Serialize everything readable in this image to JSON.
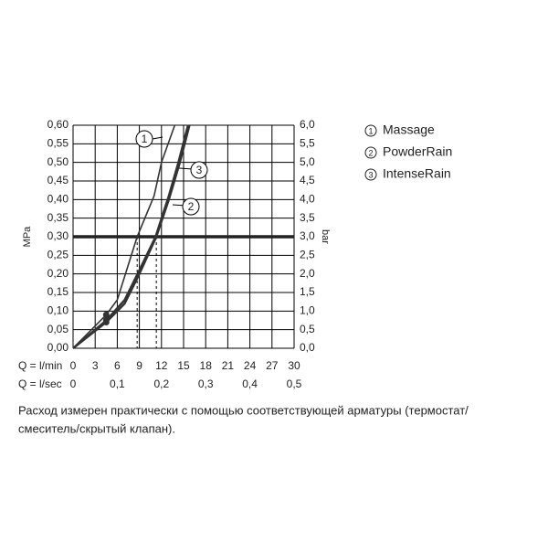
{
  "chart_data": {
    "type": "line",
    "y_label": "MPa",
    "y2_label": "bar",
    "x_label": "Q = l/min",
    "x2_label": "Q = l/sec",
    "xlim": [
      0,
      30
    ],
    "xticks": [
      0,
      3,
      6,
      9,
      12,
      15,
      18,
      21,
      24,
      27,
      30
    ],
    "x2lim": [
      0,
      0.5
    ],
    "x2ticks": [
      0,
      {
        "value": 0.1,
        "label": "0,1"
      },
      {
        "value": 0.2,
        "label": "0,2"
      },
      {
        "value": 0.3,
        "label": "0,3"
      },
      {
        "value": 0.4,
        "label": "0,4"
      },
      {
        "value": 0.5,
        "label": "0,5"
      }
    ],
    "ylim": [
      0,
      0.6
    ],
    "yticks": [
      {
        "value": 0,
        "label": "0,00"
      },
      {
        "value": 0.05,
        "label": "0,05"
      },
      {
        "value": 0.1,
        "label": "0,10"
      },
      {
        "value": 0.15,
        "label": "0,15"
      },
      {
        "value": 0.2,
        "label": "0,20"
      },
      {
        "value": 0.25,
        "label": "0,25"
      },
      {
        "value": 0.3,
        "label": "0,30"
      },
      {
        "value": 0.35,
        "label": "0,35"
      },
      {
        "value": 0.4,
        "label": "0,40"
      },
      {
        "value": 0.45,
        "label": "0,45"
      },
      {
        "value": 0.5,
        "label": "0,50"
      },
      {
        "value": 0.55,
        "label": "0,55"
      },
      {
        "value": 0.6,
        "label": "0,60"
      }
    ],
    "y2lim": [
      0,
      6
    ],
    "y2ticks": [
      {
        "value": 0,
        "label": "0,0"
      },
      {
        "value": 0.5,
        "label": "0,5"
      },
      {
        "value": 1,
        "label": "1,0"
      },
      {
        "value": 1.5,
        "label": "1,5"
      },
      {
        "value": 2,
        "label": "2,0"
      },
      {
        "value": 2.5,
        "label": "2,5"
      },
      {
        "value": 3,
        "label": "3,0"
      },
      {
        "value": 3.5,
        "label": "3,5"
      },
      {
        "value": 4,
        "label": "4,0"
      },
      {
        "value": 4.5,
        "label": "4,5"
      },
      {
        "value": 5,
        "label": "5,0"
      },
      {
        "value": 5.5,
        "label": "5,5"
      },
      {
        "value": 6,
        "label": "6,0"
      }
    ],
    "grid": true,
    "hline": 0.3,
    "reference_x": [
      8.7,
      11.3
    ],
    "series": [
      {
        "name": "Massage",
        "callout": "1",
        "color": "#333333",
        "x": [
          0,
          4.5,
          6,
          8.7,
          11,
          12,
          13.8
        ],
        "values": [
          0,
          0.09,
          0.13,
          0.3,
          0.41,
          0.5,
          0.6
        ]
      },
      {
        "name": "PowderRain",
        "callout": "2",
        "color": "#333333",
        "x": [
          0,
          4.5,
          7,
          9,
          11.3,
          13,
          14.5,
          15.8
        ],
        "values": [
          0,
          0.07,
          0.12,
          0.2,
          0.3,
          0.4,
          0.5,
          0.6
        ]
      },
      {
        "name": "IntenseRain",
        "callout": "3",
        "color": "#333333",
        "x": [
          0,
          4.5,
          7,
          9,
          11.2,
          13,
          14.3,
          15.6
        ],
        "values": [
          0,
          0.075,
          0.13,
          0.21,
          0.3,
          0.41,
          0.5,
          0.6
        ]
      }
    ],
    "caption": [
      "Расход измерен практически с помощью соответствующей арматуры (термостат/",
      "смеситель/скрытый клапан)."
    ]
  }
}
